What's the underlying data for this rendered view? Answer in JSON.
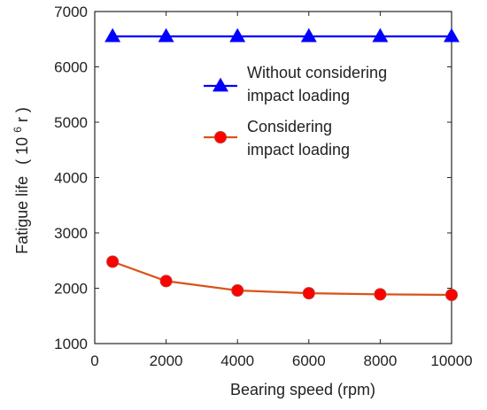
{
  "chart_data": {
    "type": "line",
    "xlabel": "Bearing speed (rpm)",
    "ylabel": "Fatigue life",
    "ylabel_unit_prefix": "( 10",
    "ylabel_unit_exp": "6",
    "ylabel_unit_suffix": " r )",
    "xlim": [
      0,
      10000
    ],
    "ylim": [
      1000,
      7000
    ],
    "xticks": [
      0,
      2000,
      4000,
      6000,
      8000,
      10000
    ],
    "yticks": [
      1000,
      2000,
      3000,
      4000,
      5000,
      6000,
      7000
    ],
    "grid": false,
    "legend_position": "upper-right",
    "series": [
      {
        "name_line1": "Without considering",
        "name_line2": " impact loading",
        "color": "#0000ff",
        "marker": "triangle",
        "x": [
          500,
          2000,
          4000,
          6000,
          8000,
          10000
        ],
        "y": [
          6550,
          6550,
          6550,
          6550,
          6550,
          6550
        ]
      },
      {
        "name_line1": "Considering",
        "name_line2": "impact loading",
        "color": "#d95319",
        "marker_color": "#ff0000",
        "marker": "circle",
        "x": [
          500,
          2000,
          4000,
          6000,
          8000,
          10000
        ],
        "y": [
          2480,
          2130,
          1960,
          1910,
          1890,
          1880
        ]
      }
    ]
  }
}
